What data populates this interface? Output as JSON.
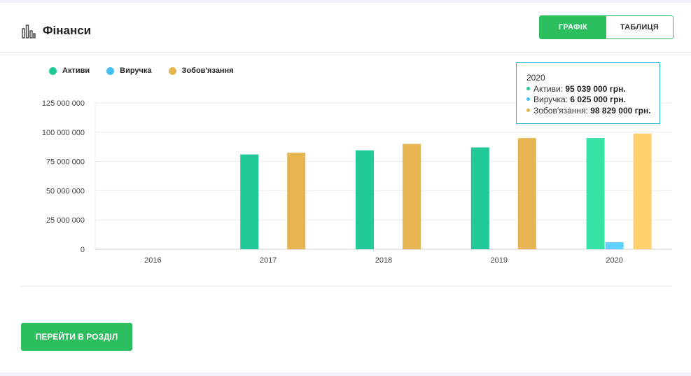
{
  "header": {
    "title": "Фінанси",
    "title_icon": "bar-chart-icon",
    "toggle": {
      "chart_label": "ГРАФІК",
      "table_label": "ТАБЛИЦЯ"
    }
  },
  "colors": {
    "assets": "#20c997",
    "assets_highlight": "#38e3a8",
    "revenue": "#42c0f5",
    "revenue_highlight": "#5fd0ff",
    "liabilities": "#e6b451",
    "liabilities_highlight": "#ffd06c",
    "accent": "#2dbe60",
    "tooltip_border": "#34b3d6"
  },
  "chart_data": {
    "type": "bar",
    "categories": [
      "2016",
      "2017",
      "2018",
      "2019",
      "2020"
    ],
    "series": [
      {
        "name": "Активи",
        "values": [
          null,
          81000000,
          84500000,
          87000000,
          95039000
        ]
      },
      {
        "name": "Виручка",
        "values": [
          null,
          null,
          null,
          null,
          6025000
        ]
      },
      {
        "name": "Зобов'язання",
        "values": [
          null,
          82500000,
          90000000,
          95000000,
          98829000
        ]
      }
    ],
    "ylim": [
      0,
      125000000
    ],
    "yticks": [
      {
        "value": 0,
        "label": "0"
      },
      {
        "value": 25000000,
        "label": "25 000 000"
      },
      {
        "value": 50000000,
        "label": "50 000 000"
      },
      {
        "value": 75000000,
        "label": "75 000 000"
      },
      {
        "value": 100000000,
        "label": "100 000 000"
      },
      {
        "value": 125000000,
        "label": "125 000 000"
      }
    ],
    "grid": true,
    "legend": "top-left",
    "highlighted_category": "2020"
  },
  "tooltip": {
    "year": "2020",
    "rows": [
      {
        "label": "Активи: ",
        "value": "95 039 000 грн."
      },
      {
        "label": "Виручка: ",
        "value": "6 025 000 грн."
      },
      {
        "label": "Зобов'язання: ",
        "value": "98 829 000 грн."
      }
    ]
  },
  "footer": {
    "cta_label": "ПЕРЕЙТИ В РОЗДІЛ"
  }
}
